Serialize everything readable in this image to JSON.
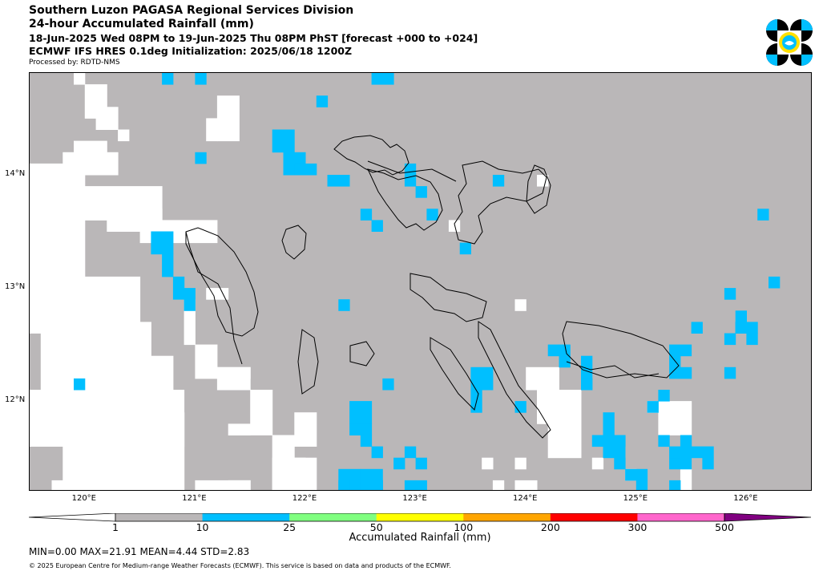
{
  "header": {
    "line1": "Southern Luzon PAGASA Regional Services Division",
    "line2": "24-hour Accumulated Rainfall (mm)",
    "line3": "18-Jun-2025 Wed 08PM to 19-Jun-2025 Thu 08PM PhST [forecast +000 to +024]",
    "line4": "ECMWF IFS HRES 0.1deg Initialization: 2025/06/18 1200Z",
    "line5": "Processed by: RDTD-NMS"
  },
  "logo": {
    "icon": "pagasa-logo",
    "colors": [
      "#000000",
      "#00bfff",
      "#ffe000"
    ]
  },
  "map": {
    "lon_ticks": [
      "120°E",
      "121°E",
      "122°E",
      "123°E",
      "124°E",
      "125°E",
      "126°E"
    ],
    "lon_values": [
      120,
      121,
      122,
      123,
      124,
      125,
      126
    ],
    "lat_ticks": [
      "14°N",
      "13°N",
      "12°N"
    ],
    "lat_values": [
      14,
      13,
      12
    ],
    "extent": {
      "lon": [
        119.5,
        126.6
      ],
      "lat": [
        11.2,
        14.9
      ]
    },
    "background_color": "#bab7b8",
    "no_rain_color": "#ffffff",
    "rain_color_10_25": "#00bfff"
  },
  "colorbar": {
    "levels": [
      "1",
      "10",
      "25",
      "50",
      "100",
      "200",
      "300",
      "500"
    ],
    "colors": [
      "#ffffff",
      "#bab7b8",
      "#00bfff",
      "#80ff80",
      "#ffff00",
      "#ffa500",
      "#ff0000",
      "#ff66cc",
      "#800080"
    ],
    "title": "Accumulated Rainfall (mm)"
  },
  "stats": "MIN=0.00   MAX=21.91   MEAN=4.44   STD=2.83",
  "copyright": "© 2025 European Centre for Medium-range Weather Forecasts (ECMWF). This service is based on data and products of the ECMWF."
}
